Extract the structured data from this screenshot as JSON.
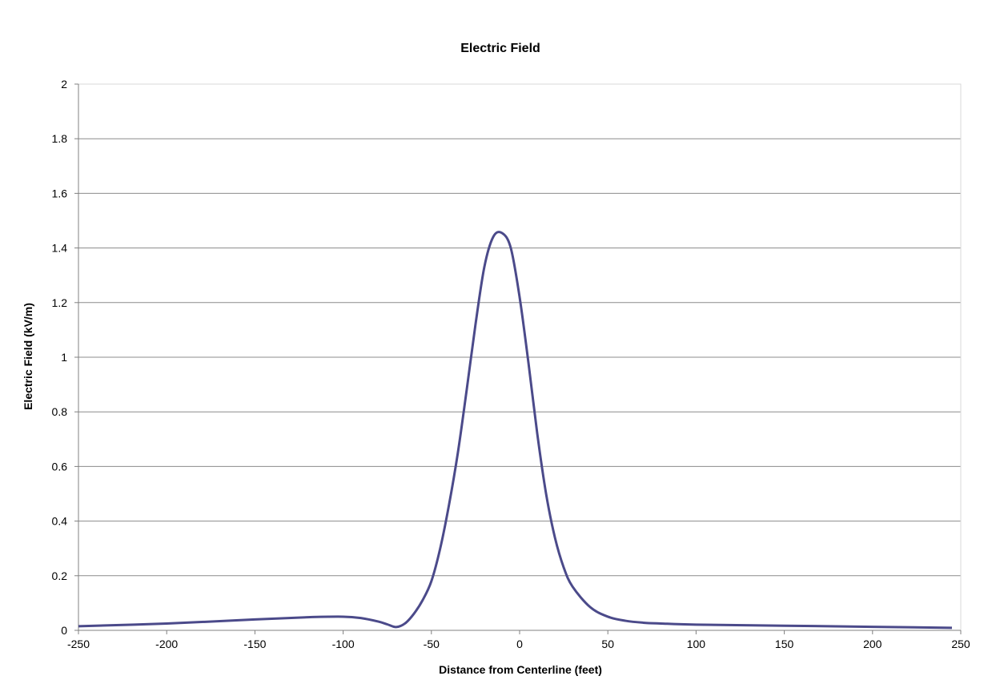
{
  "chart_data": {
    "type": "line",
    "title": "Electric Field",
    "xlabel": "Distance from Centerline (feet)",
    "ylabel": "Electric Field (kV/m)",
    "xlim": [
      -250,
      250
    ],
    "ylim": [
      0,
      2
    ],
    "x_ticks": [
      -250,
      -200,
      -150,
      -100,
      -50,
      0,
      50,
      100,
      150,
      200,
      250
    ],
    "x_tick_labels": [
      "-250",
      "-200",
      "-150",
      "-100",
      "-50",
      "0",
      "50",
      "100",
      "150",
      "200",
      "250"
    ],
    "y_ticks": [
      0,
      0.2,
      0.4,
      0.6,
      0.8,
      1,
      1.2,
      1.4,
      1.6,
      1.8,
      2
    ],
    "y_tick_labels": [
      "0",
      "0.2",
      "0.4",
      "0.6",
      "0.8",
      "1",
      "1.2",
      "1.4",
      "1.6",
      "1.8",
      "2"
    ],
    "grid": "horizontal",
    "series": [
      {
        "color": "#4b4a8a",
        "x": [
          -250,
          -200,
          -150,
          -120,
          -100,
          -90,
          -80,
          -75,
          -70,
          -65,
          -60,
          -55,
          -50,
          -45,
          -40,
          -35,
          -30,
          -25,
          -20,
          -15,
          -10,
          -5,
          0,
          5,
          10,
          15,
          20,
          25,
          30,
          40,
          50,
          60,
          70,
          80,
          100,
          150,
          200,
          245
        ],
        "y": [
          0.015,
          0.025,
          0.04,
          0.048,
          0.05,
          0.045,
          0.032,
          0.022,
          0.012,
          0.025,
          0.06,
          0.11,
          0.18,
          0.3,
          0.46,
          0.65,
          0.88,
          1.12,
          1.33,
          1.44,
          1.455,
          1.4,
          1.22,
          0.98,
          0.72,
          0.5,
          0.34,
          0.23,
          0.16,
          0.085,
          0.05,
          0.035,
          0.028,
          0.025,
          0.021,
          0.017,
          0.013,
          0.009
        ]
      }
    ]
  }
}
